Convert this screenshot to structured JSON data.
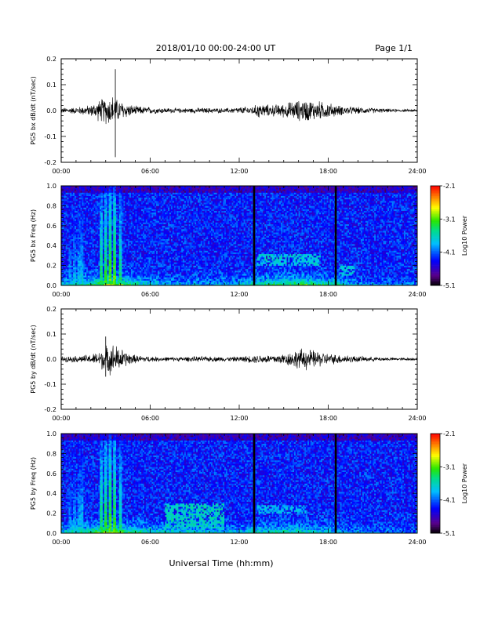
{
  "header": {
    "title": "2018/01/10  00:00-24:00 UT",
    "page": "Page 1/1"
  },
  "xaxis": {
    "label": "Universal Time (hh:mm)",
    "ticks": [
      "00:00",
      "06:00",
      "12:00",
      "18:00",
      "24:00"
    ]
  },
  "chart_data": [
    {
      "type": "line",
      "ylabel": "PG5 bx dB/dt (nT/sec)",
      "xlim": [
        0,
        24
      ],
      "ylim": [
        -0.2,
        0.2
      ],
      "yticks": [
        "0.2",
        "0.1",
        "0.0",
        "-0.1",
        "-0.2"
      ],
      "ytick_values": [
        0.2,
        0.1,
        0.0,
        -0.1,
        -0.2
      ],
      "envelope": {
        "x": [
          0,
          1,
          2,
          2.5,
          3,
          3.5,
          3.75,
          4,
          4.5,
          5,
          6,
          7,
          8,
          9,
          10,
          11,
          12,
          13,
          13.3,
          13.6,
          14,
          15,
          15.5,
          16,
          16.5,
          17,
          17.5,
          18,
          18.5,
          19,
          20,
          21,
          22,
          23,
          24
        ],
        "amp": [
          0.012,
          0.015,
          0.025,
          0.045,
          0.06,
          0.07,
          0.05,
          0.045,
          0.03,
          0.02,
          0.015,
          0.012,
          0.01,
          0.012,
          0.012,
          0.01,
          0.015,
          0.02,
          0.035,
          0.03,
          0.025,
          0.03,
          0.04,
          0.045,
          0.05,
          0.045,
          0.04,
          0.035,
          0.025,
          0.02,
          0.015,
          0.012,
          0.008,
          0.006,
          0.006
        ]
      },
      "spikes": [
        {
          "x": 3.65,
          "ymax": 0.16,
          "ymin": -0.18
        }
      ]
    },
    {
      "type": "heatmap",
      "ylabel": "PG5 bx Freq (Hz)",
      "xlim": [
        0,
        24
      ],
      "ylim": [
        0,
        1.0
      ],
      "yticks": [
        "1.0",
        "0.8",
        "0.6",
        "0.4",
        "0.2",
        "0.0"
      ],
      "ytick_values": [
        1.0,
        0.8,
        0.6,
        0.4,
        0.2,
        0.0
      ],
      "colorbar": {
        "label": "Log10 Power",
        "ticks": [
          "-2.1",
          "-3.1",
          "-4.1",
          "-5.1"
        ],
        "tick_values": [
          -2.1,
          -3.1,
          -4.1,
          -5.1
        ],
        "range": [
          -5.1,
          -2.1
        ]
      },
      "background_level": -4.3,
      "low_freq_enhancement": {
        "x": [
          0,
          1,
          2,
          3,
          3.5,
          4,
          5,
          6,
          8,
          10,
          12,
          13,
          14,
          15,
          16,
          17,
          18,
          19,
          20,
          22,
          24
        ],
        "level": [
          -3.6,
          -3.4,
          -3.2,
          -2.8,
          -2.6,
          -3.0,
          -3.3,
          -3.6,
          -3.8,
          -3.8,
          -3.7,
          -3.4,
          -3.2,
          -3.1,
          -3.0,
          -3.1,
          -3.3,
          -3.6,
          -3.9,
          -4.0,
          -4.0
        ]
      },
      "vertical_streaks": [
        0.6,
        0.9,
        1.2,
        1.4,
        2.7,
        3.0,
        3.3,
        3.6,
        4.0
      ],
      "data_gaps": [
        13.0,
        18.5
      ],
      "emission_bands": [
        {
          "x0": 13.2,
          "x1": 17.5,
          "f0": 0.2,
          "f1": 0.32,
          "level": -3.7
        },
        {
          "x0": 18.8,
          "x1": 19.8,
          "f0": 0.1,
          "f1": 0.2,
          "level": -3.7
        }
      ]
    },
    {
      "type": "line",
      "ylabel": "PG5 by dB/dt (nT/sec)",
      "xlim": [
        0,
        24
      ],
      "ylim": [
        -0.2,
        0.2
      ],
      "yticks": [
        "0.2",
        "0.1",
        "0.0",
        "-0.1",
        "-0.2"
      ],
      "ytick_values": [
        0.2,
        0.1,
        0.0,
        -0.1,
        -0.2
      ],
      "envelope": {
        "x": [
          0,
          1,
          2,
          2.5,
          3,
          3.5,
          4,
          4.5,
          5,
          6,
          7,
          8,
          9,
          10,
          11,
          12,
          13,
          13.5,
          14,
          15,
          15.5,
          16,
          16.5,
          17,
          17.5,
          18,
          18.5,
          19,
          20,
          21,
          22,
          23,
          24
        ],
        "amp": [
          0.012,
          0.015,
          0.02,
          0.035,
          0.06,
          0.07,
          0.05,
          0.03,
          0.018,
          0.012,
          0.01,
          0.01,
          0.012,
          0.012,
          0.01,
          0.012,
          0.018,
          0.02,
          0.02,
          0.025,
          0.035,
          0.045,
          0.05,
          0.04,
          0.035,
          0.025,
          0.022,
          0.02,
          0.014,
          0.01,
          0.008,
          0.006,
          0.006
        ]
      },
      "spikes": [
        {
          "x": 3.0,
          "ymax": 0.09,
          "ymin": -0.07
        }
      ]
    },
    {
      "type": "heatmap",
      "ylabel": "PG5 by Freq (Hz)",
      "xlim": [
        0,
        24
      ],
      "ylim": [
        0,
        1.0
      ],
      "yticks": [
        "1.0",
        "0.8",
        "0.6",
        "0.4",
        "0.2",
        "0.0"
      ],
      "ytick_values": [
        1.0,
        0.8,
        0.6,
        0.4,
        0.2,
        0.0
      ],
      "colorbar": {
        "label": "Log10 Power",
        "ticks": [
          "-2.1",
          "-3.1",
          "-4.1",
          "-5.1"
        ],
        "tick_values": [
          -2.1,
          -3.1,
          -4.1,
          -5.1
        ],
        "range": [
          -5.1,
          -2.1
        ]
      },
      "background_level": -4.3,
      "low_freq_enhancement": {
        "x": [
          0,
          1,
          2,
          3,
          3.5,
          4,
          5,
          6,
          8,
          10,
          12,
          13,
          14,
          15,
          16,
          17,
          18,
          19,
          20,
          22,
          24
        ],
        "level": [
          -3.6,
          -3.4,
          -3.2,
          -2.8,
          -2.7,
          -3.0,
          -3.2,
          -3.5,
          -3.5,
          -3.6,
          -3.7,
          -3.5,
          -3.4,
          -3.3,
          -3.4,
          -3.5,
          -3.6,
          -3.8,
          -3.9,
          -4.0,
          -4.0
        ]
      },
      "vertical_streaks": [
        0.6,
        0.9,
        1.2,
        1.4,
        2.7,
        3.0,
        3.3,
        3.6,
        4.0
      ],
      "data_gaps": [
        13.0,
        18.5
      ],
      "emission_bands": [
        {
          "x0": 13.2,
          "x1": 16.5,
          "f0": 0.2,
          "f1": 0.28,
          "level": -3.8
        },
        {
          "x0": 7.0,
          "x1": 11.0,
          "f0": 0.05,
          "f1": 0.3,
          "level": -3.6
        }
      ]
    }
  ]
}
